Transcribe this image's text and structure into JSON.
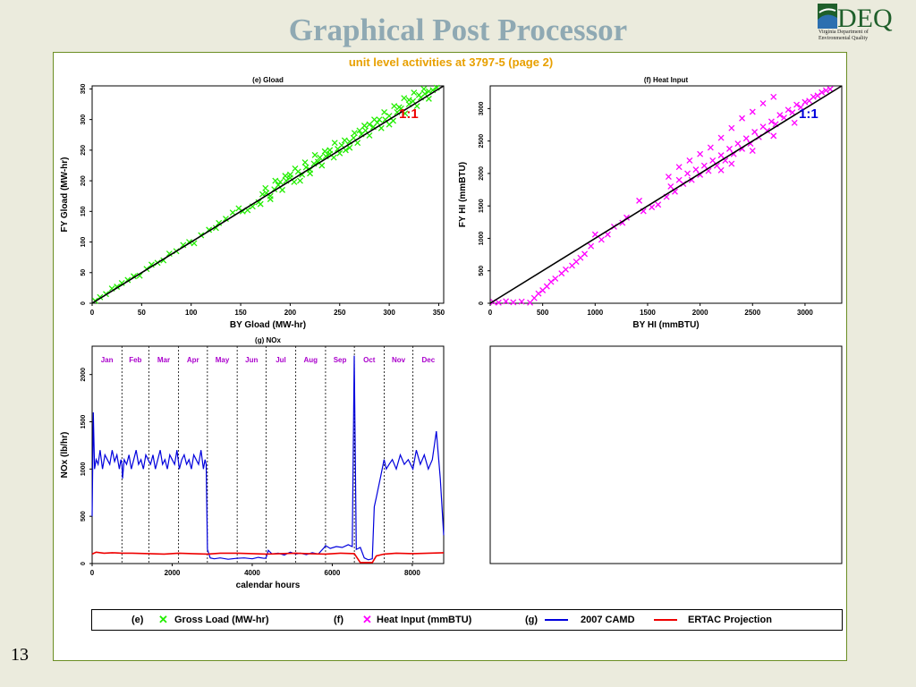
{
  "slide": {
    "title": "Graphical Post Processor",
    "page_number": "13",
    "logo_text": "DEQ",
    "logo_subtext": "Virginia Department of Environmental Quality"
  },
  "subtitle": "unit level activities at  3797-5  (page 2)",
  "colors": {
    "gload": "#22ee00",
    "heat_input": "#ff00ff",
    "camd": "#0000dd",
    "ertac": "#ee0000",
    "one_to_one_e": "#ee0000",
    "one_to_one_f": "#0000dd",
    "month_labels": "#aa00cc"
  },
  "chart_data": [
    {
      "id": "e",
      "type": "scatter",
      "title": "(e) Gload",
      "xlabel": "BY Gload (MW-hr)",
      "ylabel": "FY Gload (MW-hr)",
      "xlim": [
        0,
        355
      ],
      "ylim": [
        0,
        355
      ],
      "xticks": [
        0,
        50,
        100,
        150,
        200,
        250,
        300,
        350
      ],
      "yticks": [
        0,
        50,
        100,
        150,
        200,
        250,
        300,
        350
      ],
      "annotation": "1:1",
      "reference_line": [
        [
          0,
          0
        ],
        [
          355,
          355
        ]
      ],
      "points": [
        [
          3,
          4
        ],
        [
          8,
          10
        ],
        [
          14,
          15
        ],
        [
          20,
          24
        ],
        [
          25,
          27
        ],
        [
          30,
          33
        ],
        [
          36,
          38
        ],
        [
          42,
          44
        ],
        [
          48,
          45
        ],
        [
          55,
          56
        ],
        [
          60,
          63
        ],
        [
          66,
          66
        ],
        [
          72,
          70
        ],
        [
          78,
          81
        ],
        [
          85,
          85
        ],
        [
          92,
          95
        ],
        [
          98,
          100
        ],
        [
          103,
          98
        ],
        [
          110,
          111
        ],
        [
          118,
          120
        ],
        [
          125,
          123
        ],
        [
          128,
          131
        ],
        [
          135,
          138
        ],
        [
          142,
          148
        ],
        [
          148,
          155
        ],
        [
          152,
          150
        ],
        [
          157,
          152
        ],
        [
          162,
          158
        ],
        [
          168,
          165
        ],
        [
          172,
          178
        ],
        [
          176,
          180
        ],
        [
          180,
          175
        ],
        [
          184,
          186
        ],
        [
          188,
          193
        ],
        [
          192,
          185
        ],
        [
          196,
          200
        ],
        [
          200,
          205
        ],
        [
          204,
          198
        ],
        [
          208,
          215
        ],
        [
          212,
          210
        ],
        [
          216,
          222
        ],
        [
          220,
          218
        ],
        [
          224,
          228
        ],
        [
          228,
          231
        ],
        [
          232,
          225
        ],
        [
          236,
          240
        ],
        [
          240,
          244
        ],
        [
          244,
          238
        ],
        [
          248,
          252
        ],
        [
          252,
          258
        ],
        [
          256,
          250
        ],
        [
          260,
          264
        ],
        [
          264,
          270
        ],
        [
          268,
          262
        ],
        [
          272,
          276
        ],
        [
          276,
          282
        ],
        [
          280,
          274
        ],
        [
          284,
          288
        ],
        [
          288,
          295
        ],
        [
          292,
          286
        ],
        [
          296,
          300
        ],
        [
          300,
          306
        ],
        [
          304,
          298
        ],
        [
          308,
          312
        ],
        [
          312,
          318
        ],
        [
          316,
          310
        ],
        [
          320,
          325
        ],
        [
          324,
          330
        ],
        [
          328,
          322
        ],
        [
          332,
          336
        ],
        [
          336,
          342
        ],
        [
          340,
          334
        ],
        [
          344,
          348
        ],
        [
          348,
          352
        ],
        [
          340,
          346
        ],
        [
          330,
          340
        ],
        [
          320,
          332
        ],
        [
          310,
          320
        ],
        [
          300,
          292
        ],
        [
          290,
          300
        ],
        [
          280,
          292
        ],
        [
          270,
          282
        ],
        [
          260,
          254
        ],
        [
          250,
          245
        ],
        [
          240,
          250
        ],
        [
          230,
          238
        ],
        [
          220,
          212
        ],
        [
          210,
          200
        ],
        [
          200,
          210
        ],
        [
          190,
          198
        ],
        [
          180,
          170
        ],
        [
          170,
          162
        ],
        [
          175,
          188
        ],
        [
          185,
          200
        ],
        [
          195,
          208
        ],
        [
          205,
          220
        ],
        [
          215,
          230
        ],
        [
          225,
          242
        ],
        [
          235,
          248
        ],
        [
          245,
          262
        ],
        [
          255,
          266
        ],
        [
          265,
          278
        ],
        [
          275,
          290
        ],
        [
          285,
          300
        ],
        [
          295,
          312
        ],
        [
          305,
          322
        ],
        [
          315,
          335
        ],
        [
          325,
          344
        ],
        [
          335,
          350
        ]
      ]
    },
    {
      "id": "f",
      "type": "scatter",
      "title": "(f) Heat Input",
      "xlabel": "BY HI (mmBTU)",
      "ylabel": "FY HI (mmBTU)",
      "xlim": [
        0,
        3350
      ],
      "ylim": [
        0,
        3350
      ],
      "xticks": [
        0,
        500,
        1000,
        1500,
        2000,
        2500,
        3000
      ],
      "yticks": [
        0,
        500,
        1000,
        1500,
        2000,
        2500,
        3000
      ],
      "annotation": "1:1",
      "reference_line": [
        [
          0,
          0
        ],
        [
          3350,
          3350
        ]
      ],
      "points": [
        [
          30,
          20
        ],
        [
          80,
          10
        ],
        [
          150,
          30
        ],
        [
          220,
          15
        ],
        [
          300,
          25
        ],
        [
          380,
          10
        ],
        [
          420,
          80
        ],
        [
          460,
          150
        ],
        [
          500,
          200
        ],
        [
          540,
          260
        ],
        [
          580,
          330
        ],
        [
          620,
          380
        ],
        [
          680,
          460
        ],
        [
          720,
          520
        ],
        [
          780,
          580
        ],
        [
          820,
          640
        ],
        [
          860,
          700
        ],
        [
          900,
          760
        ],
        [
          960,
          880
        ],
        [
          1000,
          1060
        ],
        [
          1060,
          980
        ],
        [
          1120,
          1060
        ],
        [
          1180,
          1180
        ],
        [
          1260,
          1240
        ],
        [
          1300,
          1320
        ],
        [
          1420,
          1580
        ],
        [
          1460,
          1420
        ],
        [
          1540,
          1480
        ],
        [
          1600,
          1520
        ],
        [
          1680,
          1640
        ],
        [
          1720,
          1800
        ],
        [
          1760,
          1720
        ],
        [
          1800,
          1900
        ],
        [
          1840,
          1840
        ],
        [
          1880,
          2000
        ],
        [
          1920,
          1900
        ],
        [
          1960,
          2060
        ],
        [
          2000,
          1980
        ],
        [
          2040,
          2120
        ],
        [
          2080,
          2040
        ],
        [
          2120,
          2200
        ],
        [
          2160,
          2120
        ],
        [
          2200,
          2280
        ],
        [
          2240,
          2200
        ],
        [
          2280,
          2380
        ],
        [
          2320,
          2300
        ],
        [
          2360,
          2460
        ],
        [
          2400,
          2380
        ],
        [
          2440,
          2540
        ],
        [
          2480,
          2460
        ],
        [
          2520,
          2640
        ],
        [
          2560,
          2560
        ],
        [
          2600,
          2720
        ],
        [
          2640,
          2660
        ],
        [
          2680,
          2800
        ],
        [
          2720,
          2760
        ],
        [
          2760,
          2900
        ],
        [
          2800,
          2860
        ],
        [
          2840,
          2980
        ],
        [
          2880,
          2940
        ],
        [
          2920,
          3060
        ],
        [
          2960,
          3020
        ],
        [
          3000,
          3100
        ],
        [
          3040,
          3120
        ],
        [
          3080,
          3180
        ],
        [
          3120,
          3200
        ],
        [
          3160,
          3250
        ],
        [
          3200,
          3280
        ],
        [
          3240,
          3300
        ],
        [
          2000,
          2300
        ],
        [
          2100,
          2400
        ],
        [
          2200,
          2550
        ],
        [
          2300,
          2700
        ],
        [
          2400,
          2850
        ],
        [
          2500,
          2950
        ],
        [
          2600,
          3080
        ],
        [
          2700,
          3180
        ],
        [
          1900,
          2200
        ],
        [
          1800,
          2100
        ],
        [
          1700,
          1950
        ],
        [
          2200,
          2050
        ],
        [
          2300,
          2150
        ],
        [
          2500,
          2350
        ],
        [
          2700,
          2580
        ],
        [
          2900,
          2780
        ]
      ]
    },
    {
      "id": "g",
      "type": "line",
      "title": "(g) NOx",
      "xlabel": "calendar hours",
      "ylabel": "NOx (lb/hr)",
      "xlim": [
        0,
        8784
      ],
      "ylim": [
        0,
        2300
      ],
      "xticks": [
        0,
        2000,
        4000,
        6000,
        8000
      ],
      "yticks": [
        0,
        500,
        1000,
        1500,
        2000
      ],
      "month_dividers": [
        744,
        1416,
        2160,
        2880,
        3624,
        4344,
        5088,
        5832,
        6552,
        7296,
        8016
      ],
      "months": [
        "Jan",
        "Feb",
        "Mar",
        "Apr",
        "May",
        "Jun",
        "Jul",
        "Aug",
        "Sep",
        "Oct",
        "Nov",
        "Dec"
      ],
      "series": [
        {
          "name": "2007 CAMD",
          "x": [
            0,
            30,
            60,
            100,
            150,
            200,
            260,
            320,
            380,
            440,
            500,
            560,
            620,
            680,
            720,
            744,
            760,
            800,
            860,
            920,
            980,
            1040,
            1100,
            1160,
            1220,
            1280,
            1340,
            1400,
            1460,
            1520,
            1580,
            1640,
            1700,
            1760,
            1820,
            1880,
            1940,
            2000,
            2060,
            2120,
            2180,
            2240,
            2300,
            2360,
            2420,
            2480,
            2540,
            2600,
            2660,
            2720,
            2780,
            2820,
            2850,
            2880,
            2950,
            3050,
            3200,
            3400,
            3600,
            3800,
            4000,
            4150,
            4300,
            4344,
            4400,
            4500,
            4650,
            4800,
            4950,
            5088,
            5200,
            5350,
            5500,
            5650,
            5800,
            5832,
            5950,
            6100,
            6250,
            6400,
            6500,
            6550,
            6600,
            6650,
            6700,
            6800,
            6900,
            7000,
            7050,
            7100,
            7200,
            7296,
            7350,
            7420,
            7500,
            7600,
            7700,
            7800,
            7900,
            8016,
            8100,
            8200,
            8300,
            8400,
            8500,
            8600,
            8700,
            8784
          ],
          "y": [
            500,
            1600,
            1000,
            1100,
            1050,
            1200,
            1000,
            1150,
            1100,
            1050,
            1200,
            1080,
            1150,
            1000,
            1100,
            1050,
            900,
            1100,
            1050,
            1150,
            1000,
            1100,
            1200,
            1050,
            1100,
            1000,
            1150,
            1100,
            1050,
            1150,
            1000,
            1100,
            1200,
            1050,
            1100,
            1000,
            1150,
            1100,
            1050,
            1200,
            1000,
            1100,
            1150,
            1050,
            1100,
            1000,
            1150,
            1100,
            1050,
            1200,
            1000,
            1100,
            1050,
            150,
            60,
            50,
            60,
            45,
            55,
            60,
            50,
            65,
            55,
            60,
            140,
            100,
            110,
            90,
            120,
            100,
            110,
            95,
            115,
            100,
            170,
            190,
            160,
            180,
            170,
            200,
            180,
            2200,
            150,
            160,
            170,
            60,
            40,
            50,
            600,
            700,
            900,
            1100,
            1000,
            1050,
            1100,
            1000,
            1150,
            1050,
            1100,
            1000,
            1200,
            1050,
            1150,
            1000,
            1100,
            1400,
            900,
            300
          ],
          "color": "#0000dd"
        },
        {
          "name": "ERTAC Projection",
          "x": [
            0,
            100,
            300,
            500,
            744,
            1000,
            1416,
            1800,
            2160,
            2500,
            2880,
            3200,
            3624,
            4000,
            4344,
            4700,
            5088,
            5400,
            5832,
            6200,
            6552,
            6700,
            6900,
            7000,
            7100,
            7296,
            7600,
            8016,
            8400,
            8784
          ],
          "y": [
            100,
            120,
            110,
            115,
            110,
            110,
            105,
            100,
            110,
            105,
            100,
            110,
            110,
            105,
            100,
            105,
            110,
            105,
            100,
            110,
            105,
            10,
            10,
            10,
            80,
            100,
            110,
            105,
            110,
            115
          ],
          "color": "#ee0000"
        }
      ]
    }
  ],
  "legend": {
    "e_label": "(e)",
    "e_text": "Gross Load (MW-hr)",
    "f_label": "(f)",
    "f_text": "Heat Input (mmBTU)",
    "g_label": "(g)",
    "camd_text": "2007 CAMD",
    "ertac_text": "ERTAC Projection"
  }
}
